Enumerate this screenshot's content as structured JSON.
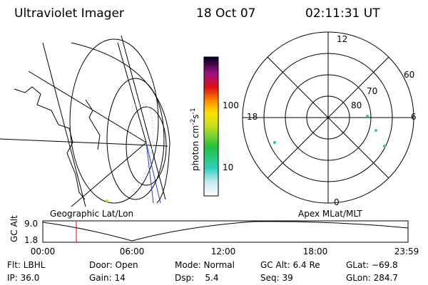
{
  "header": {
    "title": "Ultraviolet Imager",
    "date": "18 Oct 07",
    "time": "02:11:31 UT"
  },
  "colorbar": {
    "label": "photon cm",
    "exp1": "-2",
    "unit2": "s",
    "exp2": "-1",
    "ticks": [
      "100",
      "10"
    ]
  },
  "polar": {
    "labels": [
      "12",
      "60",
      "70",
      "80",
      "18",
      "6",
      "0"
    ]
  },
  "panels": {
    "left": "Geographic Lat/Lon",
    "right": "Apex MLat/MLT"
  },
  "altitude": {
    "axis_label": "GC Alt",
    "yticks": [
      "9.0",
      "1.8"
    ],
    "xticks": [
      "00:00",
      "06:00",
      "12:00",
      "18:00",
      "23:59"
    ]
  },
  "footer": {
    "rows": [
      [
        "Flt: LBHL",
        "Door: Open",
        "Mode: Normal",
        "GC Alt: 6.4 Re",
        "GLat: −69.8"
      ],
      [
        "IP: 36.0",
        "Gain: 14",
        "Dsp:    5.4",
        "Seq: 39",
        "GLon: 284.7"
      ]
    ]
  }
}
